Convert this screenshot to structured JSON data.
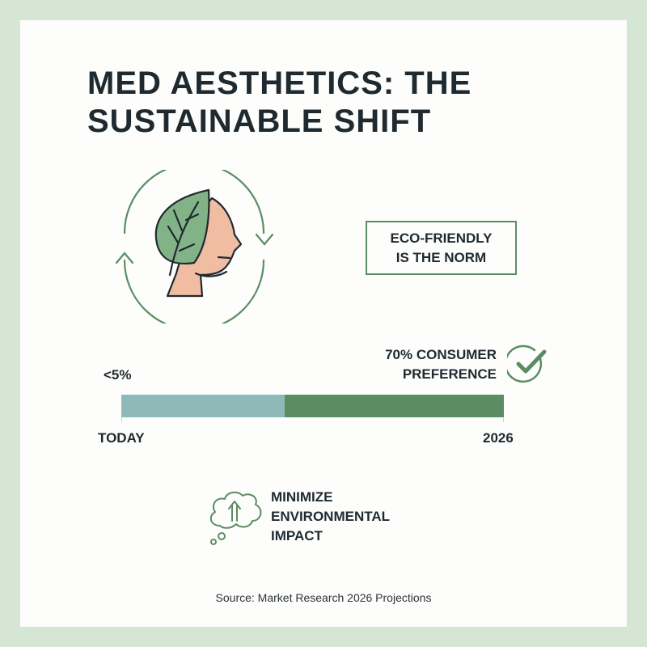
{
  "title_lines": [
    "MED AESTHETICS: THE",
    "SUSTAINABLE SHIFT"
  ],
  "icons": {
    "head": "leaf-head-cycle-icon",
    "check": "check-circle-icon",
    "cloud": "cloud-upload-icon"
  },
  "callout": {
    "lines": [
      "ECO-FRIENDLY",
      "IS THE NORM"
    ]
  },
  "timeline": {
    "start_value_label": "<5%",
    "end_value_lines": [
      "70% CONSUMER",
      "PREFERENCE"
    ],
    "start_label": "TODAY",
    "end_label": "2026",
    "segments": [
      {
        "share": 0.427,
        "color": "#8fb9b8"
      },
      {
        "share": 0.573,
        "color": "#5c8c62"
      }
    ]
  },
  "impact": {
    "lines": [
      "MINIMIZE",
      "ENVIRONMENTAL",
      "IMPACT"
    ]
  },
  "source": "Source: Market Research 2026 Projections",
  "colors": {
    "accent_green": "#5c8c62",
    "teal": "#8fb9b8",
    "leaf": "#82b387",
    "skin": "#f0bda3",
    "frame": "#d5e6d5",
    "text": "#1f2a30"
  }
}
